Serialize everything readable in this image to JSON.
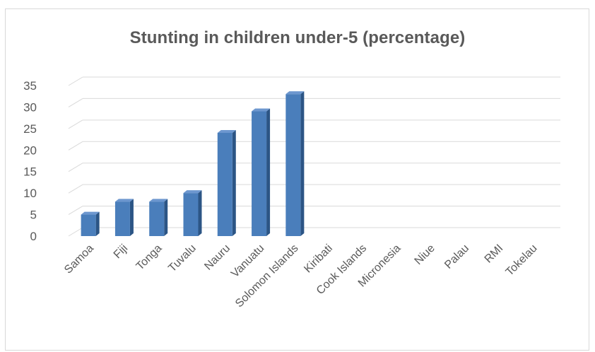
{
  "chart_data": {
    "type": "bar",
    "title": "Stunting in children under-5 (percentage)",
    "xlabel": "",
    "ylabel": "",
    "categories": [
      "Samoa",
      "Fiji",
      "Tonga",
      "Tuvalu",
      "Nauru",
      "Vanuatu",
      "Solomon Islands",
      "Kiribati",
      "Cook Islands",
      "Micronesia",
      "Niue",
      "Palau",
      "RMI",
      "Tokelau"
    ],
    "values": [
      5,
      8,
      8,
      10,
      24,
      29,
      33,
      null,
      null,
      null,
      null,
      null,
      null,
      null
    ],
    "ylim": [
      0,
      35
    ],
    "yticks": [
      "0",
      "5",
      "10",
      "15",
      "20",
      "25",
      "30",
      "35"
    ],
    "grid": true,
    "legend": "none",
    "colors": {
      "bar_front": "#4a7ebb",
      "bar_side": "#2c5585",
      "bar_top": "#6d97cf",
      "grid": "#d9d9d9",
      "text": "#595959"
    }
  }
}
